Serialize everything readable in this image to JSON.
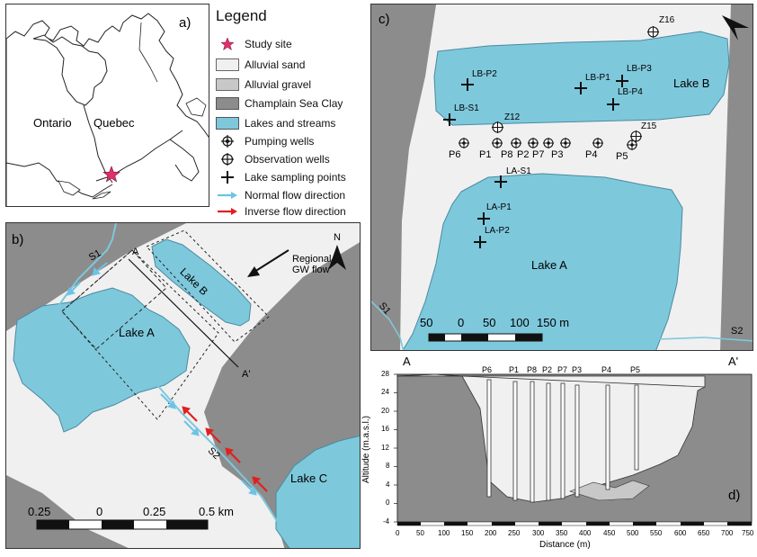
{
  "panel_a": {
    "label": "a)",
    "places": [
      "Ontario",
      "Quebec"
    ]
  },
  "legend": {
    "title": "Legend",
    "items": [
      {
        "label": "Study site",
        "symbol": "star-icon"
      },
      {
        "label": "Alluvial sand",
        "color": "#f0f0f0"
      },
      {
        "label": "Alluvial gravel",
        "color": "#c8c8c8"
      },
      {
        "label": "Champlain Sea Clay",
        "color": "#8c8c8c"
      },
      {
        "label": "Lakes and streams",
        "color": "#7ec8dc"
      },
      {
        "label": "Pumping wells",
        "symbol": "pumping-well-icon"
      },
      {
        "label": "Observation wells",
        "symbol": "observation-well-icon"
      },
      {
        "label": "Lake sampling points",
        "symbol": "cross-icon"
      },
      {
        "label": "Normal flow direction",
        "color": "#6cc3e6"
      },
      {
        "label": "Inverse flow direction",
        "color": "#e02020"
      }
    ]
  },
  "panel_b": {
    "label": "b)",
    "lakes": [
      "Lake A",
      "Lake B",
      "Lake C"
    ],
    "streams": [
      "S1",
      "S2"
    ],
    "section_points": [
      "A",
      "A'"
    ],
    "gw_flow": "Regional\nGW flow",
    "north": "N",
    "scale": [
      "0.25",
      "0",
      "0.25",
      "0.5 km"
    ]
  },
  "panel_c": {
    "label": "c)",
    "lakes": [
      "Lake A",
      "Lake B"
    ],
    "streams": [
      "S1",
      "S2"
    ],
    "lake_points": [
      "LB-P2",
      "LB-P1",
      "LB-P3",
      "LB-P4",
      "LB-S1",
      "LA-S1",
      "LA-P1",
      "LA-P2"
    ],
    "pumping_wells": [
      "P6",
      "P1",
      "P8",
      "P2",
      "P7",
      "P3",
      "P4",
      "P5"
    ],
    "observation_wells": [
      "Z16",
      "Z12",
      "Z15"
    ],
    "scale": [
      "50",
      "0",
      "50",
      "100",
      "150 m"
    ]
  },
  "panel_d": {
    "label": "d)",
    "section_points": [
      "A",
      "A'"
    ],
    "wells": [
      "P6",
      "P1",
      "P8",
      "P2",
      "P7",
      "P3",
      "P4",
      "P5"
    ],
    "y_axis_label": "Altitude (m.a.s.l.)",
    "x_axis_label": "Distance (m)",
    "y_ticks": [
      "28",
      "24",
      "20",
      "16",
      "12",
      "8",
      "4",
      "0",
      "-4"
    ],
    "x_ticks": [
      "0",
      "50",
      "100",
      "150",
      "200",
      "250",
      "300",
      "350",
      "400",
      "450",
      "500",
      "550",
      "600",
      "650",
      "700",
      "750"
    ]
  }
}
